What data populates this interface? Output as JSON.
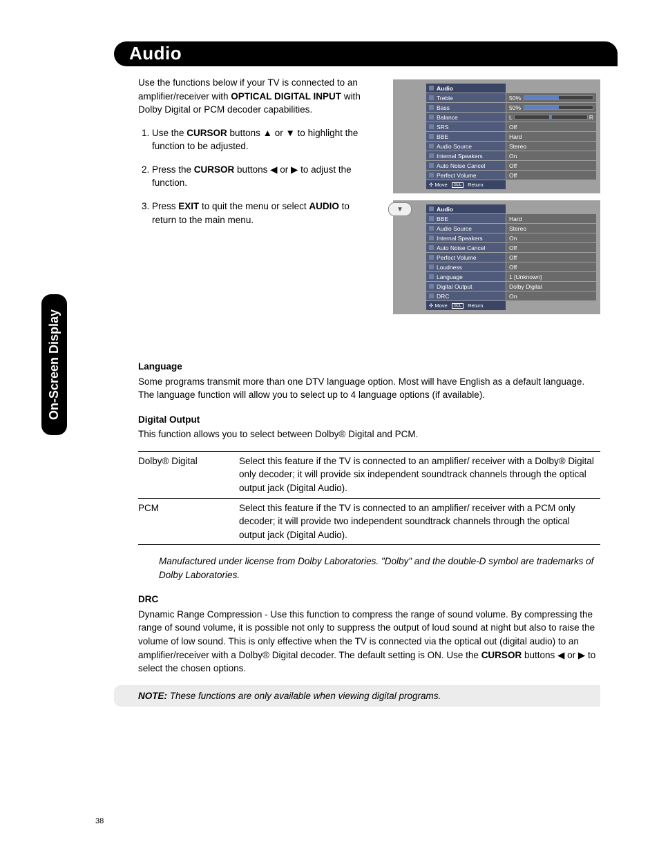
{
  "side_tab": "On-Screen Display",
  "title": "Audio",
  "page_number": "38",
  "intro": {
    "p1_a": "Use the functions below if your TV is connected to an amplifier/receiver with ",
    "p1_b": "OPTICAL DIGITAL INPUT",
    "p1_c": " with Dolby Digital or PCM decoder capabilities."
  },
  "steps": [
    {
      "a": "Use the ",
      "b": "CURSOR",
      "c": " buttons ▲ or ▼ to highlight the function to be adjusted."
    },
    {
      "a": "Press the ",
      "b": "CURSOR",
      "c": " buttons ◀ or ▶ to adjust the function."
    },
    {
      "a": "Press ",
      "b": "EXIT",
      "c": " to quit the menu or select ",
      "d": "AUDIO",
      "e": " to return to the main menu."
    }
  ],
  "osd1": {
    "header": "Audio",
    "rows": [
      {
        "label": "Treble",
        "type": "slider",
        "pct": 50,
        "text": "50%"
      },
      {
        "label": "Bass",
        "type": "slider",
        "pct": 50,
        "text": "50%"
      },
      {
        "label": "Balance",
        "type": "balance",
        "text": "L",
        "text2": "R"
      },
      {
        "label": "SRS",
        "val": "Off"
      },
      {
        "label": "BBE",
        "val": "Hard"
      },
      {
        "label": "Audio Source",
        "val": "Stereo"
      },
      {
        "label": "Internal Speakers",
        "val": "On"
      },
      {
        "label": "Auto Noise Cancel",
        "val": "Off"
      },
      {
        "label": "Perfect Volume",
        "val": "Off"
      }
    ],
    "footer_move": "Move",
    "footer_sel": "SEL",
    "footer_return": "Return"
  },
  "osd2": {
    "header": "Audio",
    "rows": [
      {
        "label": "BBE",
        "val": "Hard"
      },
      {
        "label": "Audio Source",
        "val": "Stereo"
      },
      {
        "label": "Internal Speakers",
        "val": "On"
      },
      {
        "label": "Auto Noise Cancel",
        "val": "Off"
      },
      {
        "label": "Perfect Volume",
        "val": "Off"
      },
      {
        "label": "Loudness",
        "val": "Off"
      },
      {
        "label": "Language",
        "val": "1 [Unknown]"
      },
      {
        "label": "Digital Output",
        "val": "Dolby Digital"
      },
      {
        "label": "DRC",
        "val": "On"
      }
    ],
    "footer_move": "Move",
    "footer_sel": "SEL",
    "footer_return": "Return"
  },
  "down_arrow": "▼",
  "lang": {
    "h": "Language",
    "p": "Some programs transmit more than one DTV language option. Most will have English as a default language. The language function will allow you to select up to 4 language options (if available)."
  },
  "digout": {
    "h": "Digital Output",
    "p": "This function allows you to select between Dolby® Digital and PCM.",
    "rows": [
      {
        "k": "Dolby® Digital",
        "v": "Select this feature if the TV is connected to an amplifier/ receiver with a Dolby® Digital only decoder; it will provide six independent soundtrack channels through the optical output jack (Digital Audio)."
      },
      {
        "k": "PCM",
        "v": "Select this feature if the TV is connected to an amplifier/ receiver with a PCM only decoder; it will provide two independent soundtrack channels through the optical output jack (Digital Audio)."
      }
    ],
    "license": "Manufactured under license from Dolby Laboratories. \"Dolby\" and the double-D symbol are trademarks of Dolby Laboratories."
  },
  "drc": {
    "h": "DRC",
    "p_a": "Dynamic Range Compression - Use this function to compress the range of sound volume. By compressing the range of sound volume, it is possible not only to suppress the output of loud sound at night but also to raise the volume of low sound. This is only effective when the TV is connected via the optical out (digital audio) to an amplifier/receiver with a Dolby® Digital decoder. The default setting is ON. Use the ",
    "p_b": "CURSOR",
    "p_c": " buttons ◀ or ▶ to select the chosen options."
  },
  "note": {
    "label": "NOTE:",
    "text": " These functions are only available when viewing digital programs."
  },
  "colors": {
    "menu_bg": "#a0a0a0",
    "menu_row": "#505a7a",
    "menu_header": "#3a4464",
    "menu_val": "#6a6a6a",
    "slider_fill": "#6080c0"
  }
}
